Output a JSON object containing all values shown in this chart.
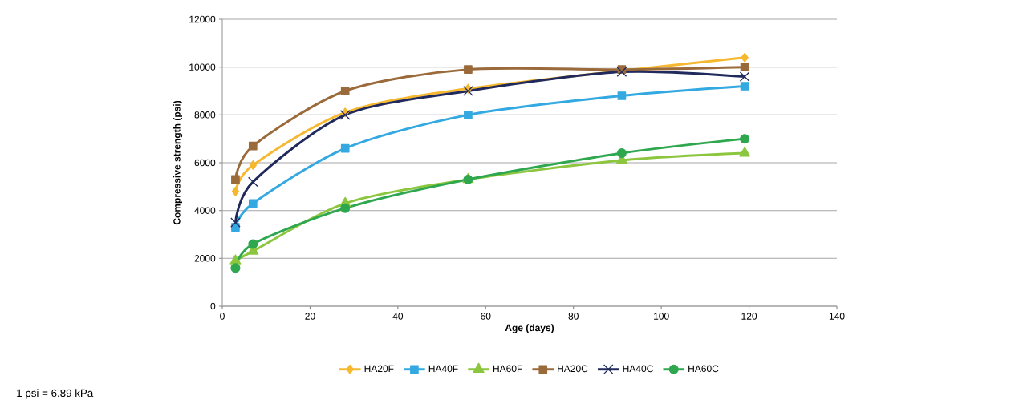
{
  "chart_data": {
    "type": "line",
    "xlabel": "Age (days)",
    "ylabel": "Compressive strength (psi)",
    "x": [
      3,
      7,
      28,
      56,
      91,
      119
    ],
    "xlim": [
      0,
      140
    ],
    "xticks": [
      0,
      20,
      40,
      60,
      80,
      100,
      120,
      140
    ],
    "ylim": [
      0,
      12000
    ],
    "yticks": [
      0,
      2000,
      4000,
      6000,
      8000,
      10000,
      12000
    ],
    "grid": "y",
    "legend": "bottom",
    "line_style": "solid",
    "series": [
      {
        "name": "HA20F",
        "color": "#f5b82e",
        "marker": "diamond",
        "values": [
          4800,
          5900,
          8100,
          9100,
          null,
          10400
        ]
      },
      {
        "name": "HA40F",
        "color": "#34a9e1",
        "marker": "square",
        "values": [
          3300,
          4300,
          6600,
          8000,
          8800,
          9200
        ]
      },
      {
        "name": "HA60F",
        "color": "#8cc63f",
        "marker": "triangle",
        "values": [
          1900,
          2300,
          4300,
          5300,
          6100,
          6400
        ]
      },
      {
        "name": "HA20C",
        "color": "#9a6a3b",
        "marker": "square",
        "values": [
          5300,
          6700,
          9000,
          9900,
          9900,
          10000
        ]
      },
      {
        "name": "HA40C",
        "color": "#202a5c",
        "marker": "cross",
        "values": [
          3500,
          5200,
          8000,
          9000,
          9800,
          9600
        ]
      },
      {
        "name": "HA60C",
        "color": "#2ea74f",
        "marker": "circle",
        "values": [
          1600,
          2600,
          4100,
          5300,
          6400,
          7000
        ]
      }
    ],
    "annotations": [
      "1 psi = 6.89 kPa"
    ]
  }
}
